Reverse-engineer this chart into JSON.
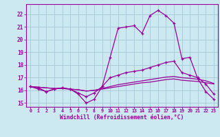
{
  "x": [
    0,
    1,
    2,
    3,
    4,
    5,
    6,
    7,
    8,
    9,
    10,
    11,
    12,
    13,
    14,
    15,
    16,
    17,
    18,
    19,
    20,
    21,
    22,
    23
  ],
  "main_line": [
    16.3,
    16.2,
    15.9,
    16.1,
    16.2,
    16.1,
    15.7,
    15.0,
    15.3,
    16.3,
    18.6,
    20.9,
    21.0,
    21.1,
    20.5,
    21.9,
    22.3,
    21.9,
    21.3,
    18.5,
    18.6,
    16.9,
    15.9,
    15.3
  ],
  "line2": [
    16.3,
    16.1,
    15.9,
    16.1,
    16.2,
    16.1,
    15.8,
    15.5,
    15.8,
    16.3,
    17.0,
    17.2,
    17.4,
    17.5,
    17.6,
    17.8,
    18.0,
    18.2,
    18.3,
    17.4,
    17.2,
    17.0,
    16.5,
    15.7
  ],
  "line3": [
    16.3,
    16.25,
    16.2,
    16.15,
    16.15,
    16.1,
    16.05,
    15.95,
    16.0,
    16.1,
    16.2,
    16.3,
    16.4,
    16.5,
    16.6,
    16.65,
    16.75,
    16.85,
    16.9,
    16.8,
    16.75,
    16.7,
    16.6,
    16.5
  ],
  "line4": [
    16.3,
    16.25,
    16.2,
    16.15,
    16.15,
    16.1,
    16.05,
    15.95,
    16.0,
    16.15,
    16.3,
    16.45,
    16.55,
    16.65,
    16.75,
    16.85,
    16.95,
    17.05,
    17.1,
    17.0,
    16.95,
    16.88,
    16.75,
    16.55
  ],
  "color": "#990099",
  "bg_color": "#cce8f0",
  "grid_color": "#aaccd8",
  "xlabel": "Windchill (Refroidissement éolien,°C)",
  "ylabel_values": [
    15,
    16,
    17,
    18,
    19,
    20,
    21,
    22
  ],
  "xlim": [
    -0.5,
    23.5
  ],
  "ylim": [
    14.7,
    22.8
  ]
}
